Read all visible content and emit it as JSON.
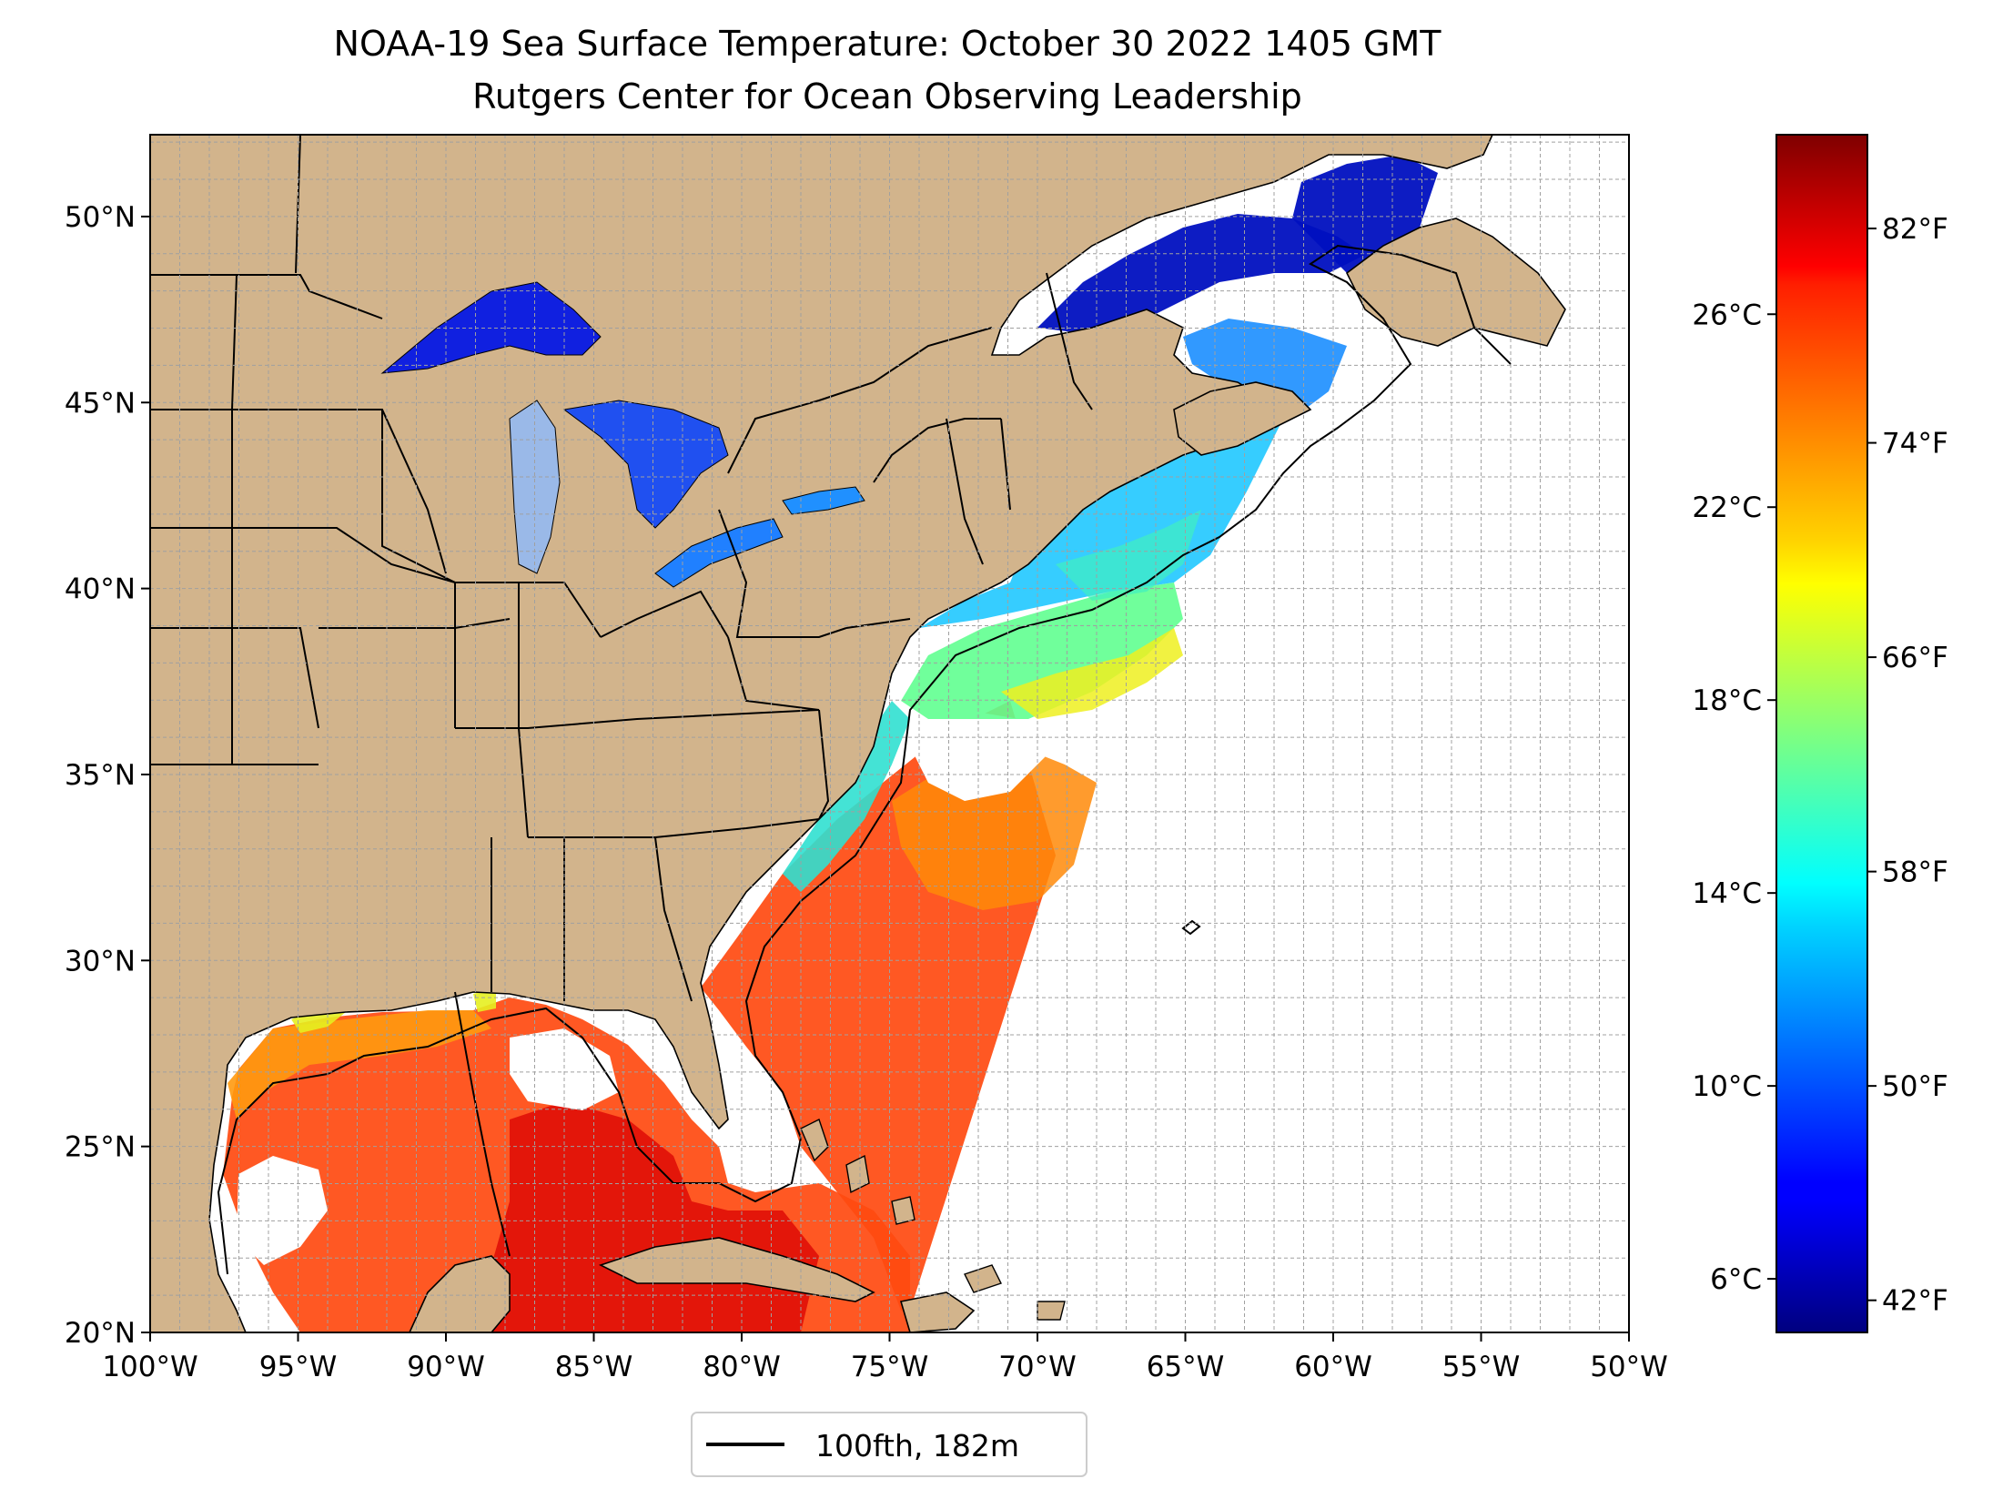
{
  "title": "NOAA-19 Sea Surface Temperature: October 30 2022 1405 GMT",
  "subtitle": "Rutgers Center for Ocean Observing Leadership",
  "map": {
    "lon_range": [
      -100,
      -50
    ],
    "lat_range": [
      20,
      52.2
    ],
    "lon_ticks": [
      "100°W",
      "95°W",
      "90°W",
      "85°W",
      "80°W",
      "75°W",
      "70°W",
      "65°W",
      "60°W",
      "55°W",
      "50°W"
    ],
    "lat_ticks": [
      "20°N",
      "25°N",
      "30°N",
      "35°N",
      "40°N",
      "45°N",
      "50°N"
    ],
    "gridlines": true,
    "land_color": "#d2b48c",
    "lake_color": "#9ab9e8",
    "ocean_color": "#ffffff"
  },
  "legend": {
    "position": "bottom-center",
    "entries": [
      {
        "label": "100fth, 182m",
        "color": "#000000"
      }
    ]
  },
  "colorbar": {
    "colormap": "jet",
    "celsius_ticks": [
      "6°C",
      "10°C",
      "14°C",
      "18°C",
      "22°C",
      "26°C"
    ],
    "fahrenheit_ticks": [
      "42°F",
      "50°F",
      "58°F",
      "66°F",
      "74°F",
      "82°F"
    ],
    "range_f": [
      40.8,
      85.5
    ]
  }
}
